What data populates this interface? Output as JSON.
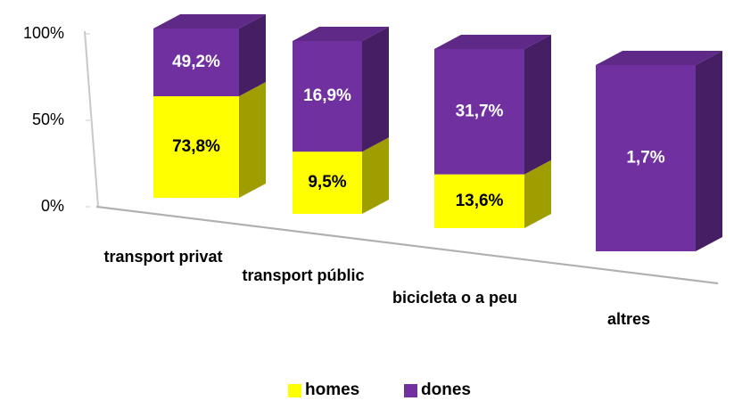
{
  "chart_data": {
    "type": "bar",
    "stacking": "percent",
    "categories": [
      "transport privat",
      "transport públic",
      "bicicleta o a peu",
      "altres"
    ],
    "series": [
      {
        "name": "homes",
        "color": "#ffff00",
        "label_color": "#000000",
        "values": [
          73.8,
          9.5,
          13.6,
          null
        ],
        "value_labels": [
          "73,8%",
          "9,5%",
          "13,6%",
          null
        ]
      },
      {
        "name": "dones",
        "color": "#7030a0",
        "label_color": "#ffffff",
        "values": [
          49.2,
          16.9,
          31.7,
          1.7
        ],
        "value_labels": [
          "49,2%",
          "16,9%",
          "31,7%",
          "1,7%"
        ]
      }
    ],
    "ylim": [
      0,
      100
    ],
    "yticks": [
      {
        "value": 0,
        "label": "0%"
      },
      {
        "value": 50,
        "label": "50%"
      },
      {
        "value": 100,
        "label": "100%"
      }
    ],
    "legend": "bottom"
  }
}
